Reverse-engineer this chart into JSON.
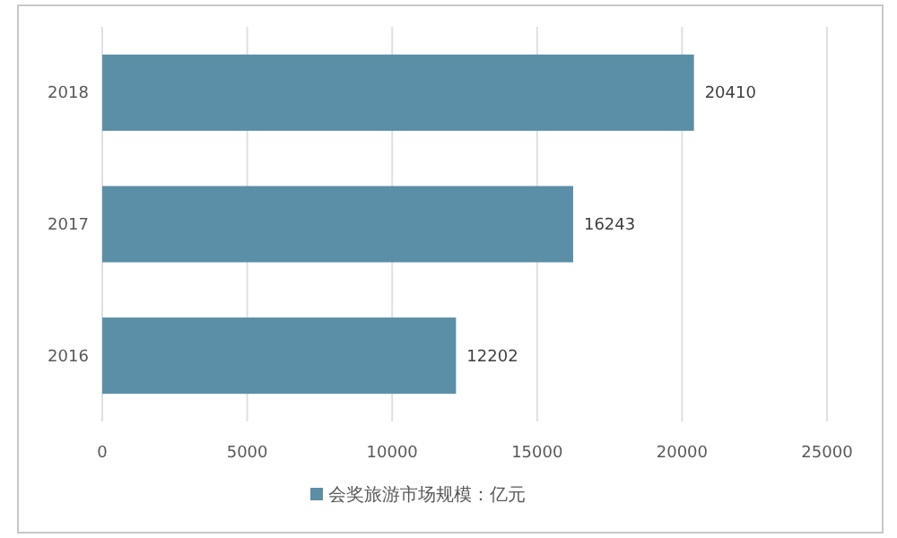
{
  "chart_data": {
    "type": "bar",
    "orientation": "horizontal",
    "categories": [
      "2018",
      "2017",
      "2016"
    ],
    "series": [
      {
        "name": "会奖旅游市场规模：亿元",
        "color": "#5b8fa8",
        "values": [
          20410,
          16243,
          12202
        ]
      }
    ],
    "xlim": [
      0,
      25000
    ],
    "xticks": [
      0,
      5000,
      10000,
      15000,
      20000,
      25000
    ],
    "grid": "x",
    "data_labels": true,
    "legend": "bottom"
  }
}
